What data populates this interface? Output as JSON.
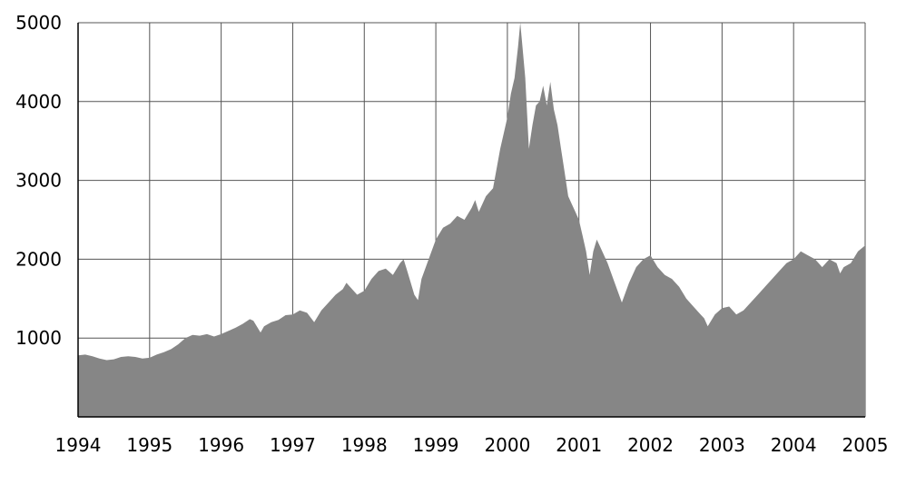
{
  "chart_data": {
    "type": "area",
    "title": "",
    "xlabel": "",
    "ylabel": "",
    "x_ticks": [
      "1994",
      "1995",
      "1996",
      "1997",
      "1998",
      "1999",
      "2000",
      "2001",
      "2002",
      "2003",
      "2004",
      "2005"
    ],
    "y_ticks": [
      "1000",
      "2000",
      "3000",
      "4000",
      "5000"
    ],
    "xlim": [
      1994,
      2005
    ],
    "ylim": [
      0,
      5000
    ],
    "grid": true,
    "legend": "none",
    "colors": {
      "fill": "#868686",
      "grid": "#555555",
      "axis": "#000000"
    },
    "series": [
      {
        "x": [
          1994.0,
          1994.1,
          1994.2,
          1994.3,
          1994.4,
          1994.5,
          1994.6,
          1994.7,
          1994.8,
          1994.9,
          1995.0,
          1995.1,
          1995.2,
          1995.3,
          1995.4,
          1995.5,
          1995.6,
          1995.7,
          1995.8,
          1995.9,
          1996.0,
          1996.1,
          1996.2,
          1996.3,
          1996.4,
          1996.45,
          1996.55,
          1996.6,
          1996.7,
          1996.8,
          1996.9,
          1997.0,
          1997.1,
          1997.2,
          1997.3,
          1997.4,
          1997.5,
          1997.6,
          1997.7,
          1997.75,
          1997.8,
          1997.9,
          1998.0,
          1998.1,
          1998.2,
          1998.3,
          1998.4,
          1998.5,
          1998.55,
          1998.6,
          1998.7,
          1998.75,
          1998.8,
          1998.9,
          1999.0,
          1999.1,
          1999.2,
          1999.3,
          1999.4,
          1999.5,
          1999.55,
          1999.6,
          1999.7,
          1999.8,
          1999.9,
          2000.0,
          2000.05,
          2000.1,
          2000.15,
          2000.18,
          2000.2,
          2000.25,
          2000.3,
          2000.35,
          2000.4,
          2000.45,
          2000.5,
          2000.55,
          2000.6,
          2000.65,
          2000.7,
          2000.75,
          2000.8,
          2000.85,
          2000.9,
          2000.95,
          2001.0,
          2001.05,
          2001.1,
          2001.15,
          2001.2,
          2001.25,
          2001.3,
          2001.4,
          2001.5,
          2001.6,
          2001.7,
          2001.8,
          2001.9,
          2002.0,
          2002.1,
          2002.2,
          2002.3,
          2002.4,
          2002.5,
          2002.6,
          2002.7,
          2002.75,
          2002.8,
          2002.9,
          2003.0,
          2003.1,
          2003.2,
          2003.3,
          2003.4,
          2003.5,
          2003.6,
          2003.7,
          2003.8,
          2003.9,
          2004.0,
          2004.05,
          2004.1,
          2004.2,
          2004.3,
          2004.4,
          2004.5,
          2004.6,
          2004.65,
          2004.7,
          2004.8,
          2004.9,
          2005.0
        ],
        "y": [
          780,
          790,
          770,
          740,
          720,
          730,
          760,
          770,
          760,
          740,
          750,
          790,
          820,
          860,
          920,
          1000,
          1040,
          1030,
          1050,
          1020,
          1050,
          1090,
          1130,
          1180,
          1240,
          1220,
          1070,
          1150,
          1200,
          1230,
          1290,
          1300,
          1350,
          1320,
          1200,
          1350,
          1450,
          1550,
          1620,
          1700,
          1650,
          1550,
          1600,
          1750,
          1850,
          1880,
          1800,
          1950,
          2000,
          1850,
          1550,
          1480,
          1750,
          2000,
          2250,
          2400,
          2450,
          2550,
          2500,
          2650,
          2750,
          2600,
          2800,
          2900,
          3400,
          3800,
          4100,
          4300,
          4700,
          5000,
          4800,
          4300,
          3400,
          3700,
          3950,
          4000,
          4200,
          3950,
          4250,
          3900,
          3700,
          3400,
          3100,
          2800,
          2700,
          2600,
          2500,
          2300,
          2100,
          1800,
          2100,
          2250,
          2150,
          1950,
          1700,
          1450,
          1700,
          1900,
          2000,
          2050,
          1900,
          1800,
          1750,
          1650,
          1500,
          1400,
          1300,
          1250,
          1150,
          1300,
          1380,
          1400,
          1300,
          1350,
          1450,
          1550,
          1650,
          1750,
          1850,
          1950,
          2000,
          2050,
          2100,
          2050,
          2000,
          1900,
          2000,
          1950,
          1820,
          1900,
          1950,
          2100,
          2175
        ]
      }
    ]
  }
}
